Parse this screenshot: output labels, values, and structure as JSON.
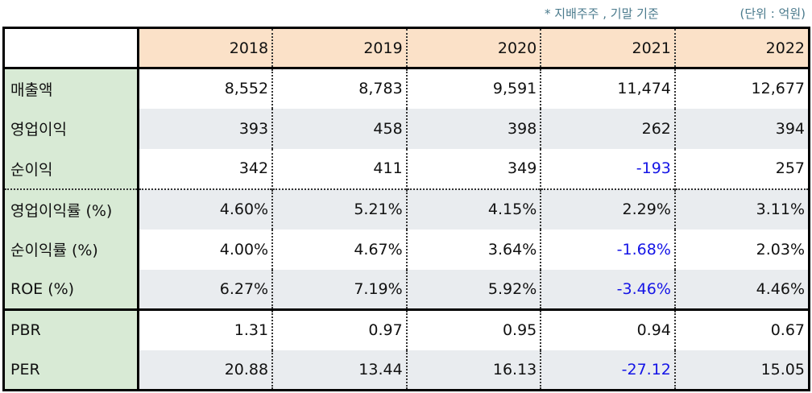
{
  "notes": {
    "basis": "* 지배주주 , 기말 기준",
    "unit": "(단위 : 억원)"
  },
  "colors": {
    "header_bg": "#fbe1c8",
    "label_bg": "#d8ead5",
    "alt_row_bg": "#e9ecef",
    "negative": "#1414e6"
  },
  "table": {
    "years": [
      "2018",
      "2019",
      "2020",
      "2021",
      "2022"
    ],
    "rows": [
      {
        "label": "매출액",
        "values": [
          "8,552",
          "8,783",
          "9,591",
          "11,474",
          "12,677"
        ]
      },
      {
        "label": "영업이익",
        "values": [
          "393",
          "458",
          "398",
          "262",
          "394"
        ]
      },
      {
        "label": "순이익",
        "values": [
          "342",
          "411",
          "349",
          "-193",
          "257"
        ]
      },
      {
        "label": "영업이익률 (%)",
        "values": [
          "4.60%",
          "5.21%",
          "4.15%",
          "2.29%",
          "3.11%"
        ]
      },
      {
        "label": "순이익률 (%)",
        "values": [
          "4.00%",
          "4.67%",
          "3.64%",
          "-1.68%",
          "2.03%"
        ]
      },
      {
        "label": "ROE (%)",
        "values": [
          "6.27%",
          "7.19%",
          "5.92%",
          "-3.46%",
          "4.46%"
        ]
      },
      {
        "label": "PBR",
        "values": [
          "1.31",
          "0.97",
          "0.95",
          "0.94",
          "0.67"
        ]
      },
      {
        "label": "PER",
        "values": [
          "20.88",
          "13.44",
          "16.13",
          "-27.12",
          "15.05"
        ]
      }
    ]
  }
}
